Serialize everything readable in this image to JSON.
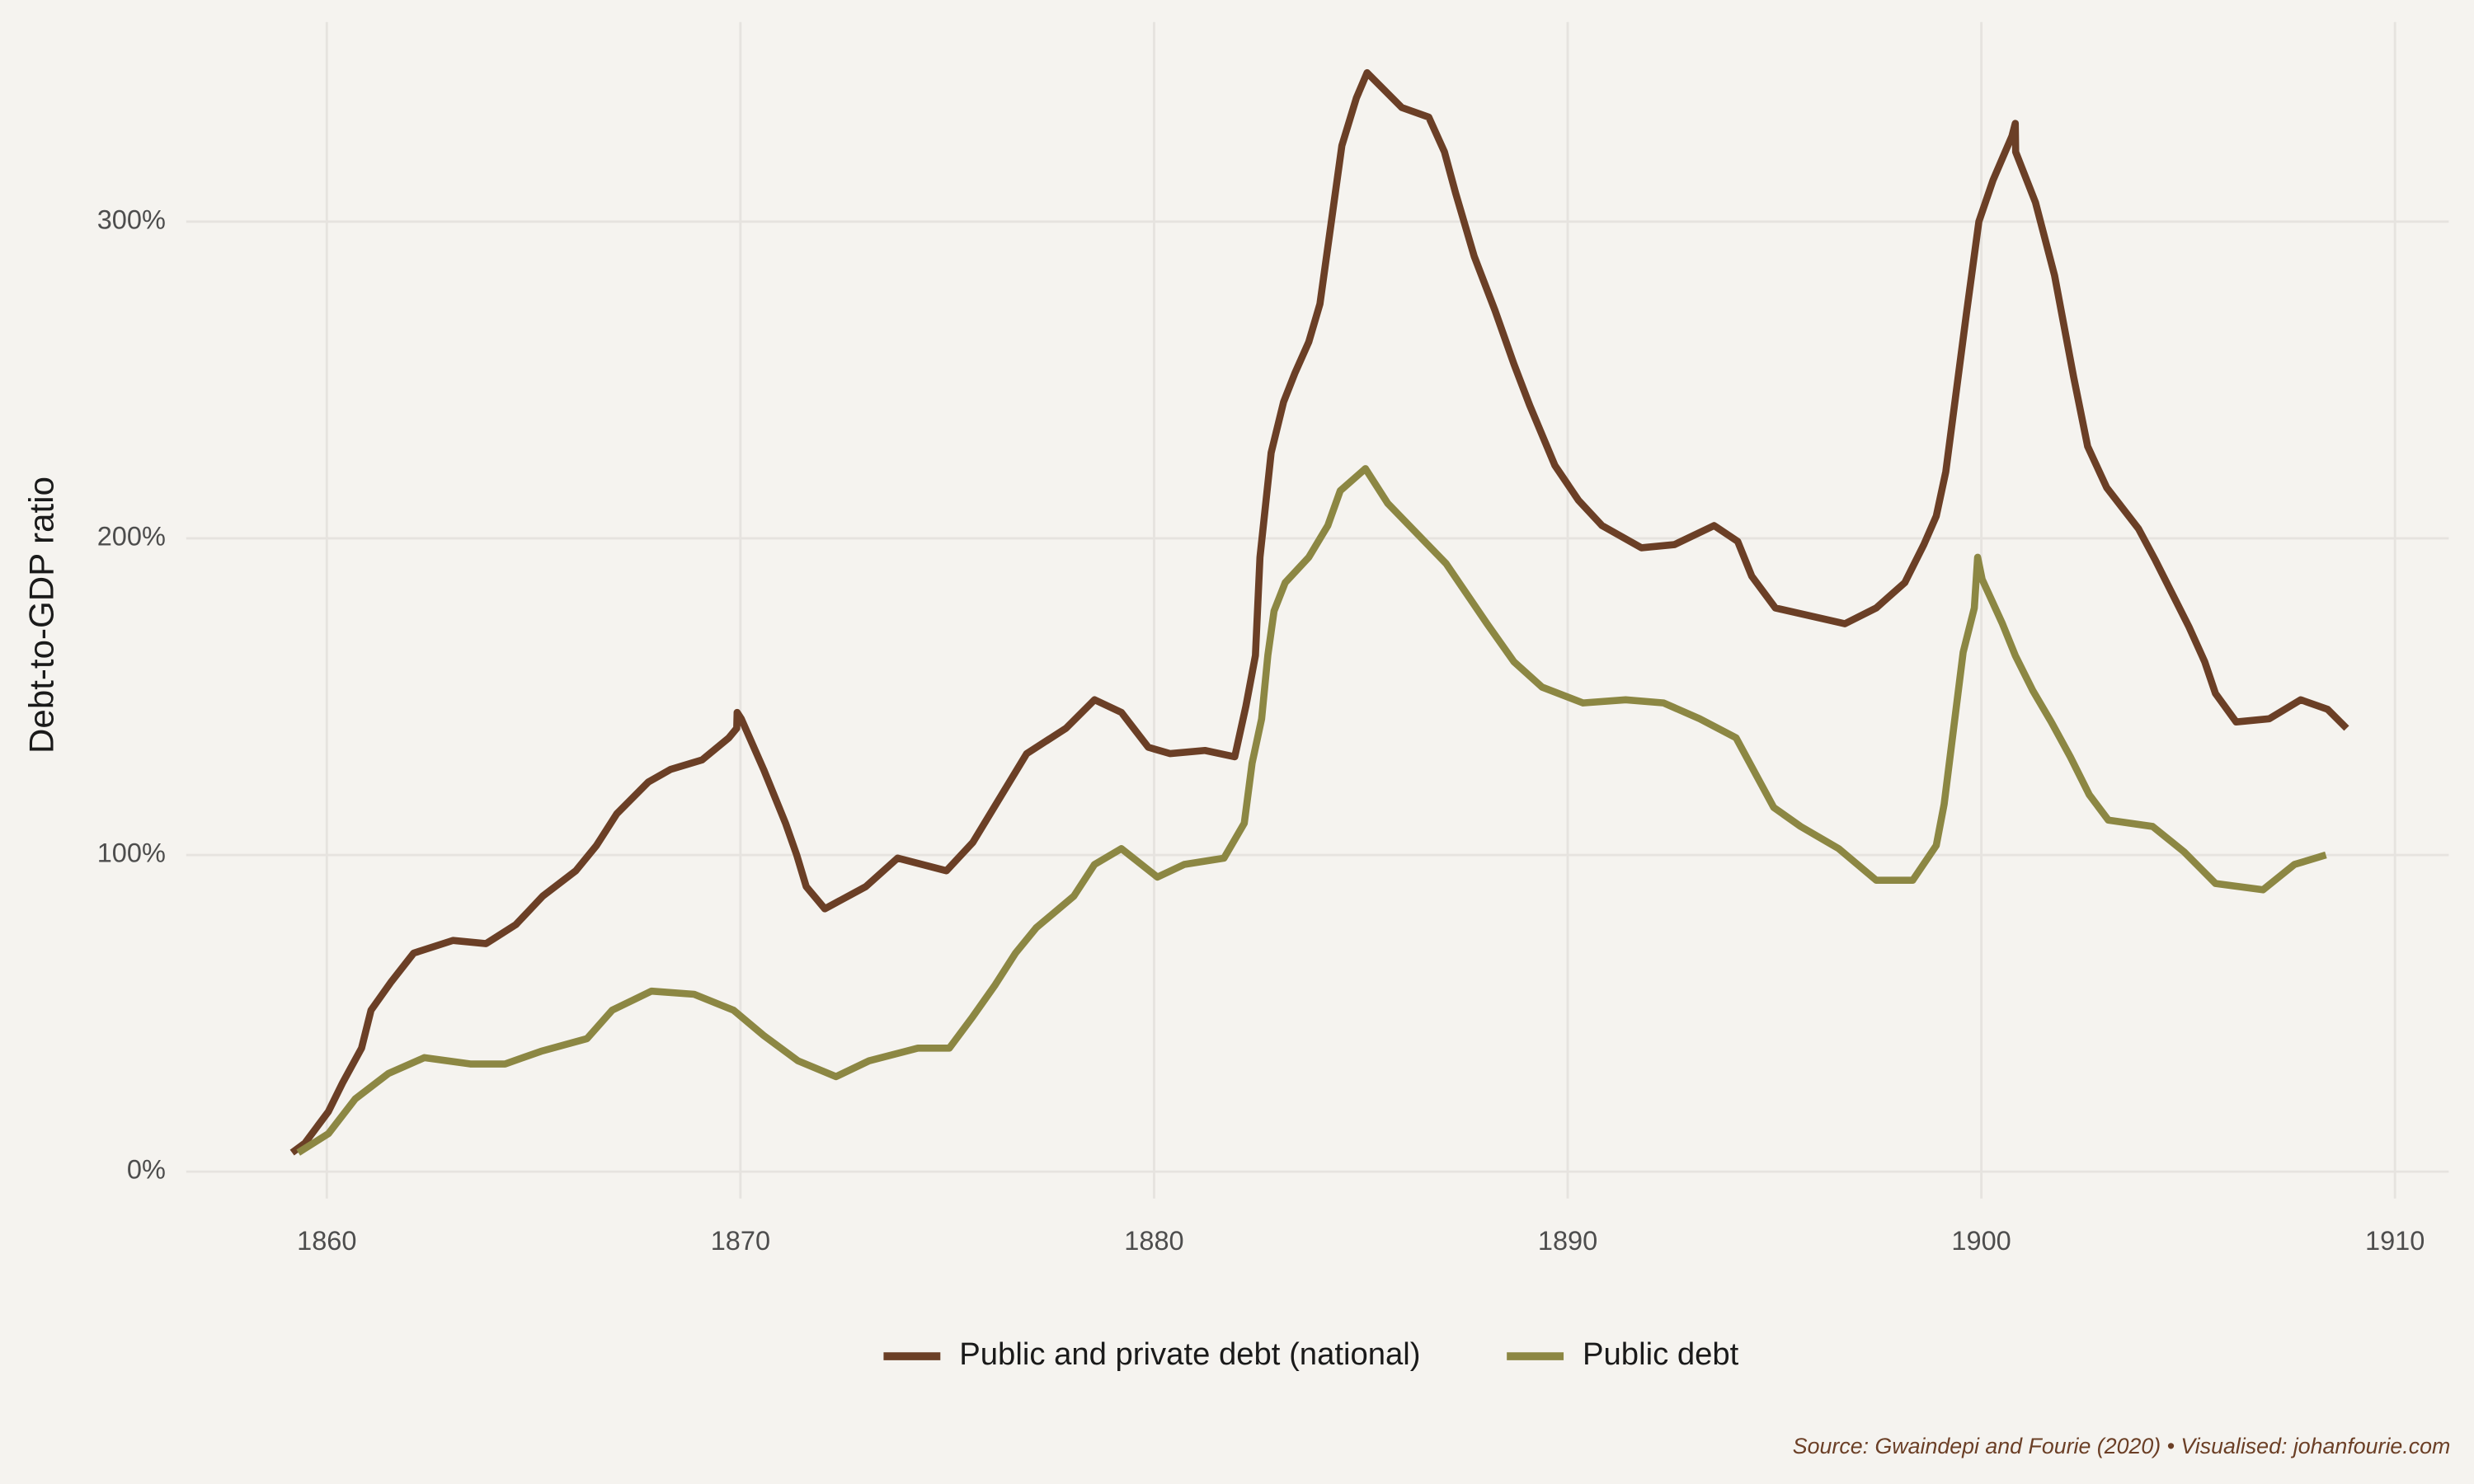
{
  "chart_data": {
    "type": "line",
    "y_label": "Debt-to-GDP ratio",
    "caption": "Source: Gwaindepi and Fourie (2020) • Visualised: johanfourie.com",
    "xlim": [
      1856.6,
      1911.3
    ],
    "xticks": [
      1860,
      1870,
      1880,
      1890,
      1900,
      1910
    ],
    "ylim": [
      -8.5,
      363
    ],
    "yticks": [
      {
        "value": 0,
        "label": "0%"
      },
      {
        "value": 100,
        "label": "100%"
      },
      {
        "value": 200,
        "label": "200%"
      },
      {
        "value": 300,
        "label": "300%"
      }
    ],
    "grid": true,
    "legend_position": "bottom",
    "series": [
      {
        "name": "Public and private debt (national)",
        "color": "#6b3f26",
        "x": [
          1859.16,
          1859.47,
          1860.04,
          1860.38,
          1860.84,
          1861.07,
          1861.56,
          1862.1,
          1863.05,
          1863.85,
          1864.57,
          1865.22,
          1866.02,
          1866.52,
          1867.01,
          1867.77,
          1868.31,
          1869.07,
          1869.72,
          1869.91,
          1869.92,
          1870.02,
          1870.56,
          1871.09,
          1871.36,
          1871.59,
          1872.04,
          1873.03,
          1873.8,
          1874.98,
          1875.62,
          1876.92,
          1877.87,
          1878.56,
          1879.21,
          1879.86,
          1880.39,
          1881.23,
          1881.95,
          1882.22,
          1882.45,
          1882.56,
          1882.83,
          1883.13,
          1883.4,
          1883.74,
          1884.01,
          1884.54,
          1884.89,
          1885.15,
          1885.99,
          1886.64,
          1887.02,
          1887.29,
          1887.74,
          1888.24,
          1888.7,
          1889.08,
          1889.69,
          1890.26,
          1890.83,
          1891.78,
          1892.58,
          1893.54,
          1894.11,
          1894.45,
          1895.02,
          1896.7,
          1897.46,
          1898.15,
          1898.61,
          1898.91,
          1899.14,
          1899.64,
          1899.94,
          1900.28,
          1900.74,
          1900.82,
          1900.83,
          1901.31,
          1901.77,
          1902.23,
          1902.57,
          1903.03,
          1903.8,
          1904.21,
          1905.02,
          1905.4,
          1905.66,
          1906.16,
          1906.96,
          1907.72,
          1908.37,
          1908.83
        ],
        "values": [
          6,
          9,
          19,
          28,
          39,
          51,
          60,
          69,
          73,
          72,
          78,
          87,
          95,
          103,
          113,
          123,
          127,
          130,
          137,
          140,
          145,
          143,
          127,
          110,
          100,
          90,
          83,
          90,
          99,
          95,
          104,
          132,
          140,
          149,
          145,
          134,
          132,
          133,
          131,
          147,
          163,
          194,
          227,
          243,
          252,
          262,
          274,
          324,
          339,
          347,
          336,
          333,
          322,
          309,
          289,
          272,
          255,
          242,
          223,
          212,
          204,
          197,
          198,
          204,
          199,
          188,
          178,
          173,
          178,
          186,
          198,
          207,
          221,
          271,
          300,
          313,
          327,
          331,
          322,
          306,
          283,
          251,
          229,
          216,
          203,
          193,
          172,
          161,
          151,
          142,
          143,
          149,
          146,
          140
        ]
      },
      {
        "name": "Public debt",
        "color": "#8c8743",
        "x": [
          1859.31,
          1860.04,
          1860.69,
          1861.49,
          1862.36,
          1863.47,
          1864.31,
          1865.18,
          1866.29,
          1866.9,
          1867.85,
          1868.88,
          1869.83,
          1870.56,
          1871.39,
          1872.31,
          1873.11,
          1874.29,
          1875.05,
          1875.62,
          1876.16,
          1876.65,
          1877.15,
          1878.06,
          1878.56,
          1879.21,
          1880.08,
          1880.73,
          1881.69,
          1882.18,
          1882.37,
          1882.6,
          1882.75,
          1882.9,
          1883.17,
          1883.74,
          1884.2,
          1884.5,
          1885.11,
          1885.65,
          1887.06,
          1888.05,
          1888.7,
          1889.38,
          1890.37,
          1891.4,
          1892.32,
          1893.19,
          1894.07,
          1894.98,
          1895.63,
          1896.55,
          1897.46,
          1898.34,
          1898.91,
          1899.1,
          1899.33,
          1899.56,
          1899.83,
          1899.91,
          1900.02,
          1900.51,
          1900.82,
          1901.24,
          1901.69,
          1902.15,
          1902.61,
          1903.07,
          1904.14,
          1904.9,
          1905.66,
          1906.81,
          1907.57,
          1908.33
        ],
        "values": [
          6,
          12,
          23,
          31,
          36,
          34,
          34,
          38,
          42,
          51,
          57,
          56,
          51,
          43,
          35,
          30,
          35,
          39,
          39,
          49,
          59,
          69,
          77,
          87,
          97,
          102,
          93,
          97,
          99,
          110,
          129,
          143,
          163,
          177,
          186,
          194,
          204,
          215,
          222,
          211,
          192,
          173,
          161,
          153,
          148,
          149,
          148,
          143,
          137,
          115,
          109,
          102,
          92,
          92,
          103,
          116,
          140,
          164,
          178,
          194,
          187,
          173,
          163,
          152,
          142,
          131,
          119,
          111,
          109,
          101,
          91,
          89,
          97,
          100
        ]
      }
    ]
  }
}
